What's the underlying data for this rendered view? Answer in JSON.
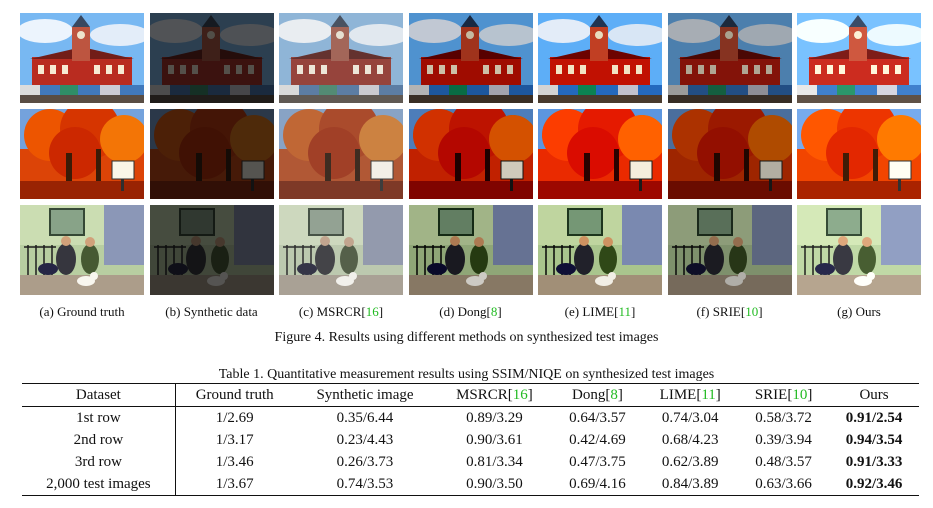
{
  "figure": {
    "columns": [
      {
        "prefix": "(a)  Ground truth",
        "ref": "",
        "suffix": "",
        "brightness": 1.0,
        "saturate": 1.15,
        "contrast": 1.05
      },
      {
        "prefix": "(b)  Synthetic data",
        "ref": "",
        "suffix": "",
        "brightness": 0.35,
        "saturate": 1.0,
        "contrast": 1.0
      },
      {
        "prefix": "(c)  MSRCR[",
        "ref": "16",
        "suffix": "]",
        "brightness": 1.05,
        "saturate": 0.75,
        "contrast": 0.9
      },
      {
        "prefix": "(d)  Dong[",
        "ref": "8",
        "suffix": "]",
        "brightness": 0.78,
        "saturate": 1.3,
        "contrast": 1.25
      },
      {
        "prefix": "(e)  LIME[",
        "ref": "11",
        "suffix": "]",
        "brightness": 0.9,
        "saturate": 1.35,
        "contrast": 1.25
      },
      {
        "prefix": "(f)  SRIE[",
        "ref": "10",
        "suffix": "]",
        "brightness": 0.7,
        "saturate": 1.2,
        "contrast": 1.15
      },
      {
        "prefix": "(g)  Ours",
        "ref": "",
        "suffix": "",
        "brightness": 1.05,
        "saturate": 1.25,
        "contrast": 1.05
      }
    ],
    "rows": [
      "building-scene",
      "autumn-tree-scene",
      "street-dog-scene"
    ],
    "caption": "Figure 4. Results using different methods on synthesized test images"
  },
  "table": {
    "caption": "Table 1.  Quantitative measurement results using SSIM/NIQE on synthesized test images",
    "headers": [
      {
        "text": "Dataset",
        "ref": ""
      },
      {
        "text": "Ground truth",
        "ref": ""
      },
      {
        "text": "Synthetic image",
        "ref": ""
      },
      {
        "text": "MSRCR",
        "ref": "16"
      },
      {
        "text": "Dong",
        "ref": "8"
      },
      {
        "text": "LIME",
        "ref": "11"
      },
      {
        "text": "SRIE",
        "ref": "10"
      },
      {
        "text": "Ours",
        "ref": ""
      }
    ],
    "rows": [
      {
        "dataset": "1st row",
        "values": [
          "1/2.69",
          "0.35/6.44",
          "0.89/3.29",
          "0.64/3.57",
          "0.74/3.04",
          "0.58/3.72",
          "0.91/2.54"
        ]
      },
      {
        "dataset": "2nd row",
        "values": [
          "1/3.17",
          "0.23/4.43",
          "0.90/3.61",
          "0.42/4.69",
          "0.68/4.23",
          "0.39/3.94",
          "0.94/3.54"
        ]
      },
      {
        "dataset": "3rd row",
        "values": [
          "1/3.46",
          "0.26/3.73",
          "0.81/3.34",
          "0.47/3.75",
          "0.62/3.89",
          "0.48/3.57",
          "0.91/3.33"
        ]
      },
      {
        "dataset": "2,000 test images",
        "values": [
          "1/3.67",
          "0.74/3.53",
          "0.90/3.50",
          "0.69/4.16",
          "0.84/3.89",
          "0.63/3.66",
          "0.92/3.46"
        ]
      }
    ],
    "best_column": 6
  },
  "colors": {
    "reference": "#22bb22",
    "rule": "#111111"
  }
}
